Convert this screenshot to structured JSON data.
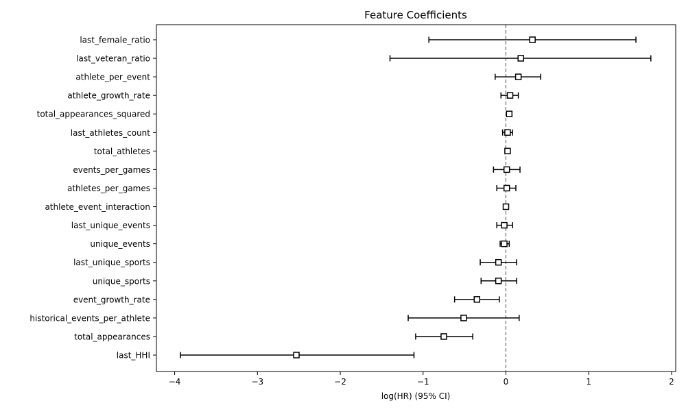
{
  "chart_data": {
    "type": "scatter",
    "title": "Feature Coefficients",
    "xlabel": "log(HR) (95% CI)",
    "ylabel": "",
    "xlim": [
      -4.22,
      2.05
    ],
    "xticks": [
      -4,
      -3,
      -2,
      -1,
      0,
      1,
      2
    ],
    "xtick_labels": [
      "−4",
      "−3",
      "−2",
      "−1",
      "0",
      "1",
      "2"
    ],
    "reference_line": {
      "x": 0,
      "style": "dashed"
    },
    "grid": false,
    "marker": "square",
    "series": [
      {
        "points": [
          {
            "label": "last_female_ratio",
            "coef": 0.32,
            "lower": -0.93,
            "upper": 1.57
          },
          {
            "label": "last_veteran_ratio",
            "coef": 0.18,
            "lower": -1.4,
            "upper": 1.75
          },
          {
            "label": "athlete_per_event",
            "coef": 0.15,
            "lower": -0.13,
            "upper": 0.42
          },
          {
            "label": "athlete_growth_rate",
            "coef": 0.05,
            "lower": -0.06,
            "upper": 0.15
          },
          {
            "label": "total_appearances_squared",
            "coef": 0.04,
            "lower": 0.03,
            "upper": 0.05
          },
          {
            "label": "last_athletes_count",
            "coef": 0.02,
            "lower": -0.04,
            "upper": 0.08
          },
          {
            "label": "total_athletes",
            "coef": 0.02,
            "lower": 0.01,
            "upper": 0.03
          },
          {
            "label": "events_per_games",
            "coef": 0.01,
            "lower": -0.15,
            "upper": 0.17
          },
          {
            "label": "athletes_per_games",
            "coef": 0.01,
            "lower": -0.11,
            "upper": 0.12
          },
          {
            "label": "athlete_event_interaction",
            "coef": 0.0,
            "lower": -0.01,
            "upper": 0.01
          },
          {
            "label": "last_unique_events",
            "coef": -0.02,
            "lower": -0.11,
            "upper": 0.08
          },
          {
            "label": "unique_events",
            "coef": -0.02,
            "lower": -0.07,
            "upper": 0.04
          },
          {
            "label": "last_unique_sports",
            "coef": -0.09,
            "lower": -0.31,
            "upper": 0.13
          },
          {
            "label": "unique_sports",
            "coef": -0.09,
            "lower": -0.3,
            "upper": 0.13
          },
          {
            "label": "event_growth_rate",
            "coef": -0.35,
            "lower": -0.62,
            "upper": -0.08
          },
          {
            "label": "historical_events_per_athlete",
            "coef": -0.51,
            "lower": -1.18,
            "upper": 0.16
          },
          {
            "label": "total_appearances",
            "coef": -0.75,
            "lower": -1.09,
            "upper": -0.4
          },
          {
            "label": "last_HHI",
            "coef": -2.53,
            "lower": -3.93,
            "upper": -1.11
          }
        ]
      }
    ]
  }
}
